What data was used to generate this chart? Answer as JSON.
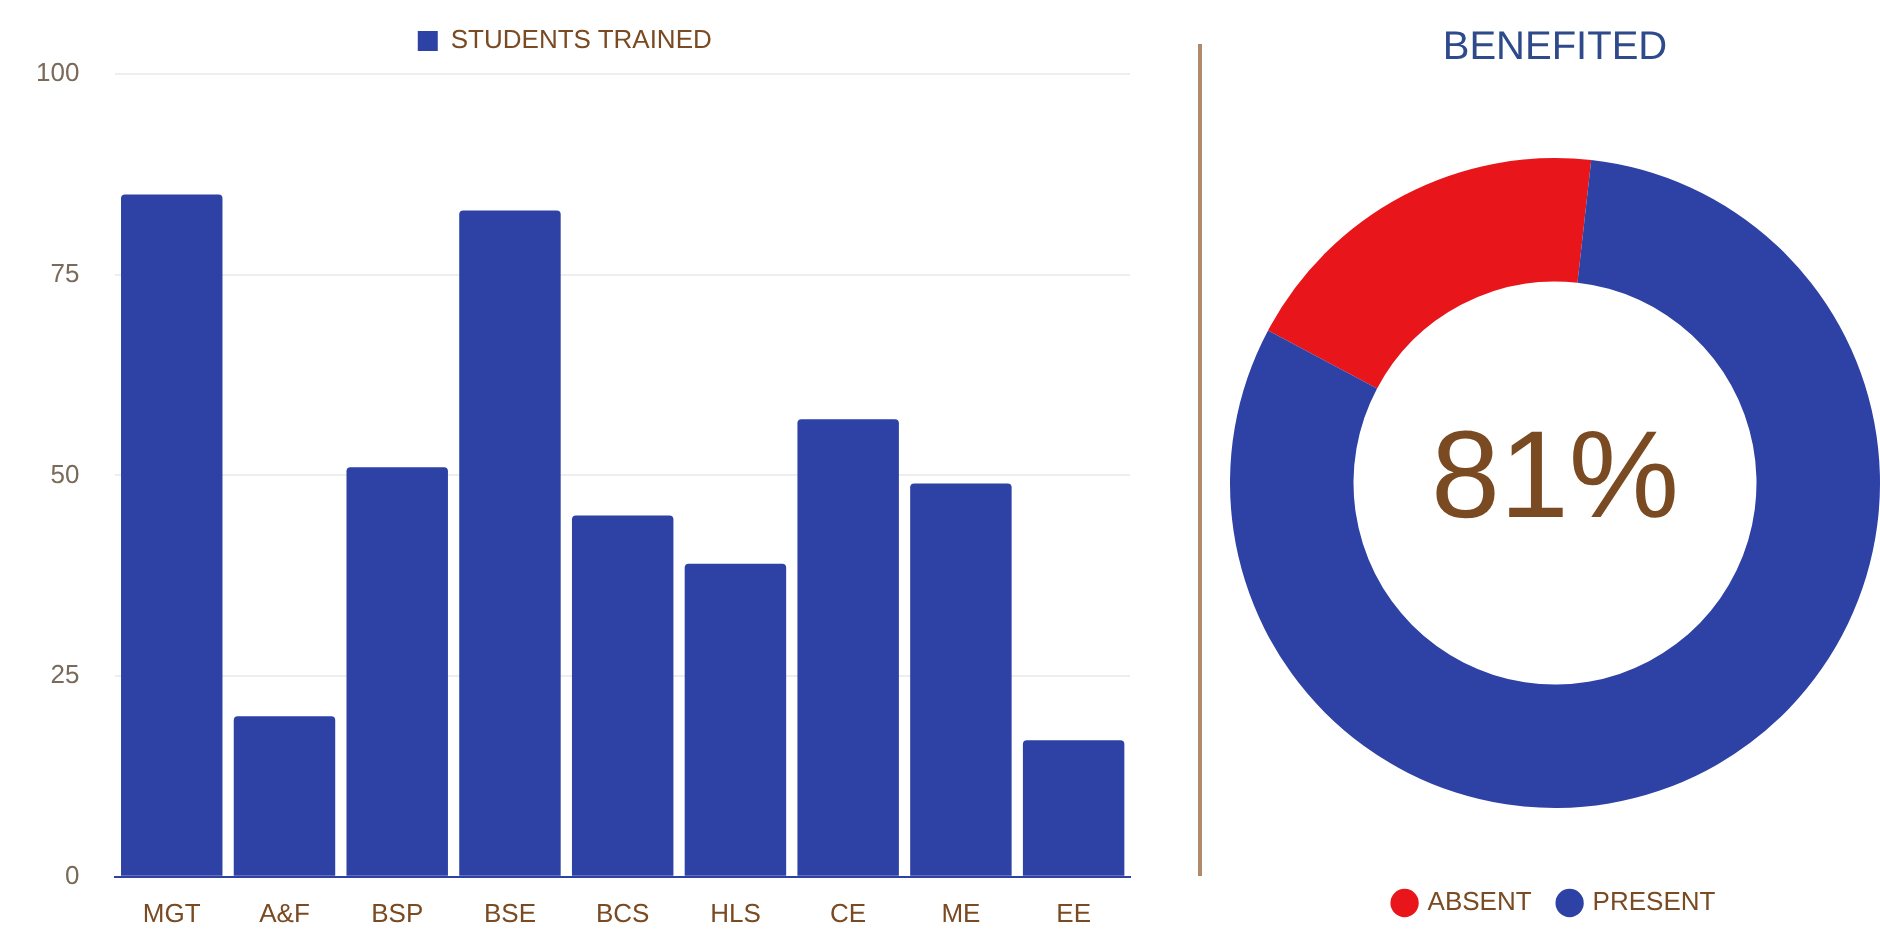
{
  "chart_data": [
    {
      "type": "bar",
      "categories": [
        "MGT",
        "A&F",
        "BSP",
        "BSE",
        "BCS",
        "HLS",
        "CE",
        "ME",
        "EE"
      ],
      "series": [
        {
          "name": "STUDENTS TRAINED",
          "color": "#2e41a4",
          "values": [
            85,
            20,
            51,
            83,
            45,
            39,
            57,
            49,
            17
          ]
        }
      ],
      "ylim": [
        0,
        100
      ],
      "yticks": [
        0,
        25,
        50,
        75,
        100
      ],
      "grid": "y",
      "legend": "top"
    },
    {
      "type": "donut",
      "title": "BENEFITED",
      "categories": [
        "ABSENT",
        "PRESENT"
      ],
      "values": [
        19,
        81
      ],
      "colors": [
        "#e8161b",
        "#2e41a4"
      ],
      "legend": "bottom",
      "annotations": [
        "81%"
      ]
    }
  ]
}
